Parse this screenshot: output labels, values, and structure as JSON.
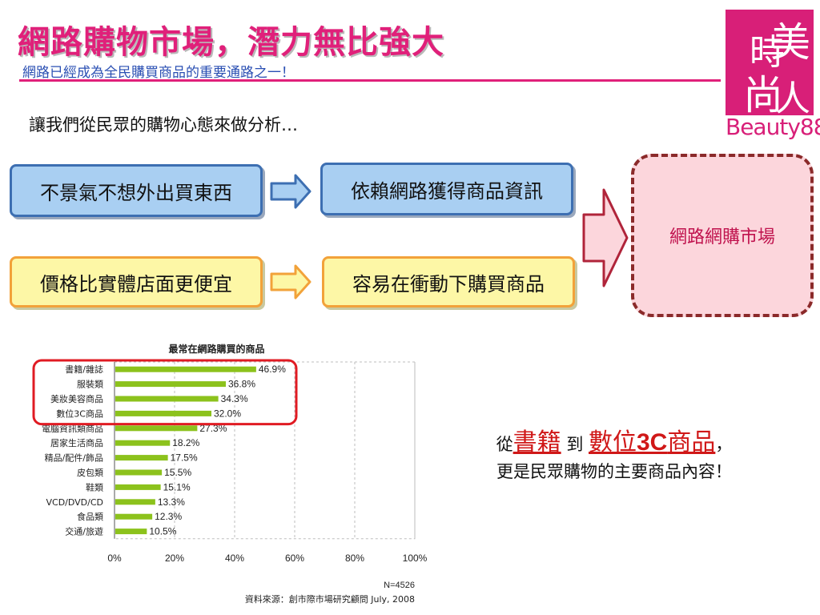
{
  "header": {
    "title": "網路購物市場，潛力無比強大",
    "subtitle": "網路已經成為全民購買商品的重要通路之一！"
  },
  "logo": {
    "glyphs": [
      "時",
      "美",
      "尚",
      "人"
    ],
    "text": "Beauty88",
    "color": "#d81f78"
  },
  "intro": "讓我們從民眾的購物心態來做分析…",
  "flow": {
    "row1": [
      "不景氣不想外出買東西",
      "依賴網路獲得商品資訊"
    ],
    "row2": [
      "價格比實體店面更便宜",
      "容易在衝動下購買商品"
    ],
    "result": "網路網購市場",
    "colors": {
      "blue": "#a9cff2",
      "yellow": "#fdf7a6",
      "result": "#fcd6dc"
    }
  },
  "chart_data": {
    "type": "bar",
    "orientation": "horizontal",
    "title": "最常在網路購買的商品",
    "categories": [
      "書籍/雜誌",
      "服裝類",
      "美妝美容商品",
      "數位3C商品",
      "電腦資訊類商品",
      "居家生活商品",
      "精品/配件/飾品",
      "皮包類",
      "鞋類",
      "VCD/DVD/CD",
      "食品類",
      "交通/旅遊"
    ],
    "values": [
      46.9,
      36.8,
      34.3,
      32.0,
      27.3,
      18.2,
      17.5,
      15.5,
      15.1,
      13.3,
      12.3,
      10.5
    ],
    "value_labels": [
      "46.9%",
      "36.8%",
      "34.3%",
      "32.0%",
      "27.3%",
      "18.2%",
      "17.5%",
      "15.5%",
      "15.1%",
      "13.3%",
      "12.3%",
      "10.5%"
    ],
    "x_ticks": [
      "0%",
      "20%",
      "40%",
      "60%",
      "80%",
      "100%"
    ],
    "xlim": [
      0,
      100
    ],
    "sample": "N=4526",
    "source": "資料來源：創市際市場研究顧問 July, 2008",
    "bar_color": "#8cc21c",
    "grid": "vertical dashed",
    "highlight_top_n": 4
  },
  "note": {
    "prefix": "從",
    "item1": "書籍",
    "connector": "到",
    "item2_a": "數位",
    "item2_b": "3C",
    "item2_c": "商品",
    "suffix": "，",
    "line2": "更是民眾購物的主要商品內容！"
  }
}
